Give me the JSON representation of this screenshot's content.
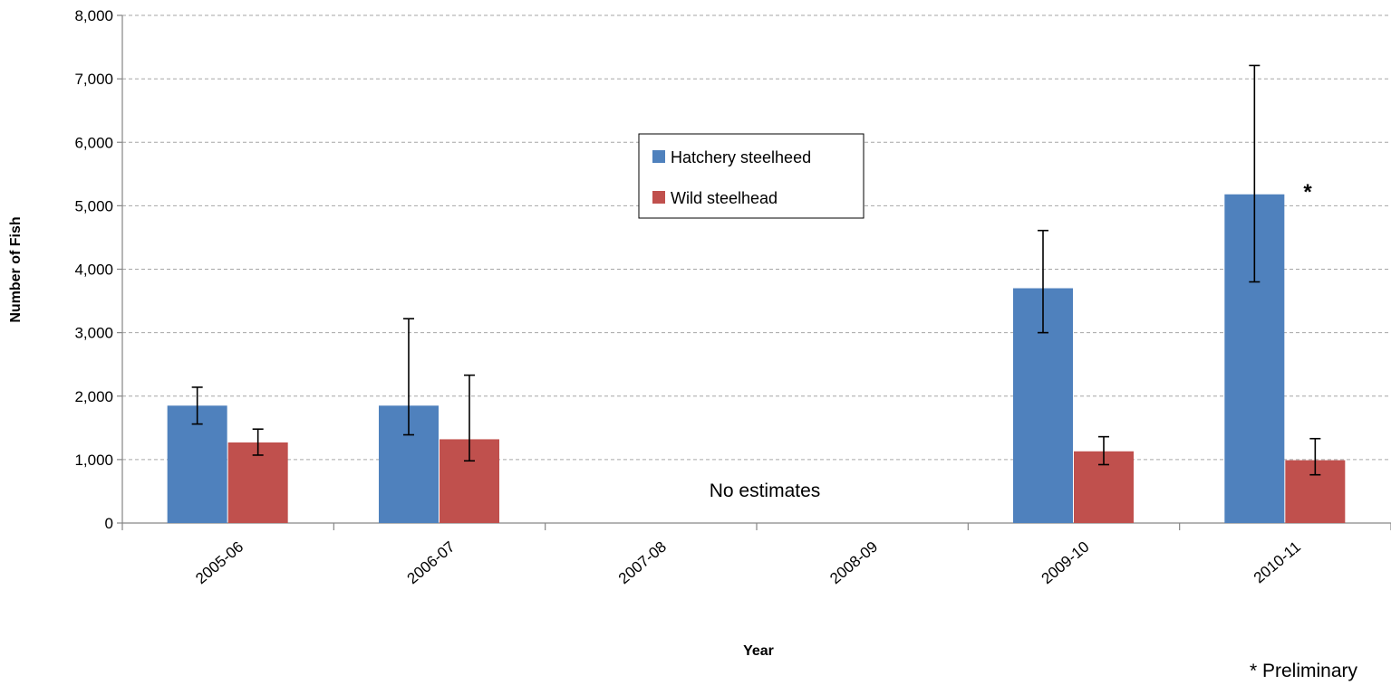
{
  "chart_data": {
    "type": "bar",
    "title": "",
    "xlabel": "Year",
    "ylabel": "Number of Fish",
    "ylim": [
      0,
      8000
    ],
    "yticks": [
      0,
      1000,
      2000,
      3000,
      4000,
      5000,
      6000,
      7000,
      8000
    ],
    "ytick_labels": [
      "0",
      "1,000",
      "2,000",
      "3,000",
      "4,000",
      "5,000",
      "6,000",
      "7,000",
      "8,000"
    ],
    "grid": true,
    "legend_position": "center",
    "categories": [
      "2005-06",
      "2006-07",
      "2007-08",
      "2008-09",
      "2009-10",
      "2010-11"
    ],
    "series": [
      {
        "name": "Hatchery steelheed",
        "color": "#4F81BD",
        "values": [
          1850,
          1850,
          null,
          null,
          3700,
          5180
        ],
        "error_low": [
          1560,
          1390,
          null,
          null,
          3000,
          3800
        ],
        "error_high": [
          2140,
          3220,
          null,
          null,
          4610,
          7210
        ]
      },
      {
        "name": "Wild steelhead",
        "color": "#C0504D",
        "values": [
          1270,
          1320,
          null,
          null,
          1130,
          990
        ],
        "error_low": [
          1070,
          980,
          null,
          null,
          920,
          760
        ],
        "error_high": [
          1480,
          2330,
          null,
          null,
          1360,
          1330
        ]
      }
    ],
    "annotations": {
      "no_estimates": "No estimates",
      "preliminary_marker": "*",
      "preliminary_note": "* Preliminary"
    }
  }
}
